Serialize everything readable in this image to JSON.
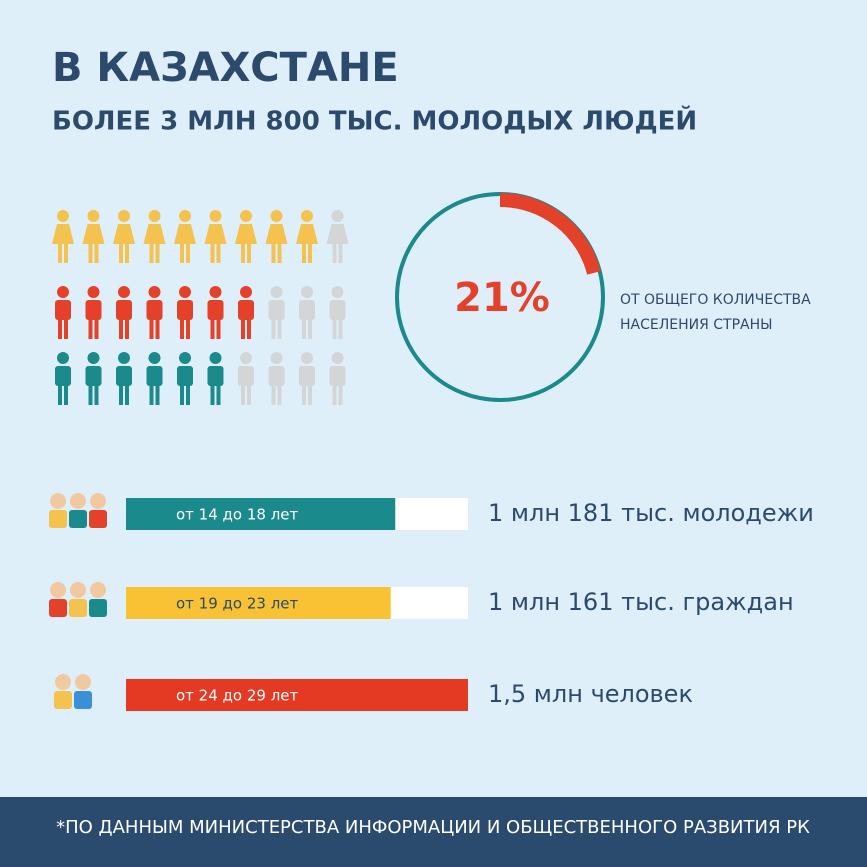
{
  "header": {
    "title": "В КАЗАХСТАНЕ",
    "subtitle": "БОЛЕЕ 3 МЛН 800 ТЫС. МОЛОДЫХ ЛЮДЕЙ"
  },
  "people_rows": [
    {
      "color": "#f3c24f",
      "filled": 9,
      "total": 10,
      "female": true
    },
    {
      "color": "#e4412b",
      "filled": 7,
      "total": 10,
      "female": false
    },
    {
      "color": "#1b8a8c",
      "filled": 6,
      "total": 10,
      "female": false
    }
  ],
  "ring": {
    "value": 21,
    "label": "21%",
    "caption": [
      "ОТ ОБЩЕГО КОЛИЧЕСТВА",
      "НАСЕЛЕНИЯ СТРАНЫ"
    ]
  },
  "groups": {
    "xlim": [
      0,
      1500
    ],
    "items": [
      {
        "label": "от 14 до 18 лет",
        "value": 1181,
        "text": "1 млн 181 тыс. молодежи",
        "color": "#1b8a8c"
      },
      {
        "label": "от 19 до 23 лет",
        "value": 1161,
        "text": "1 млн 161 тыс. граждан",
        "color": "#f9c235"
      },
      {
        "label": "от 24 до 29 лет",
        "value": 1500,
        "text": "1,5 млн человек",
        "color": "#e43a24"
      }
    ]
  },
  "footer": "*ПО ДАННЫМ МИНИСТЕРСТВА ИНФОРМАЦИИ И ОБЩЕСТВЕННОГО РАЗВИТИЯ РК"
}
